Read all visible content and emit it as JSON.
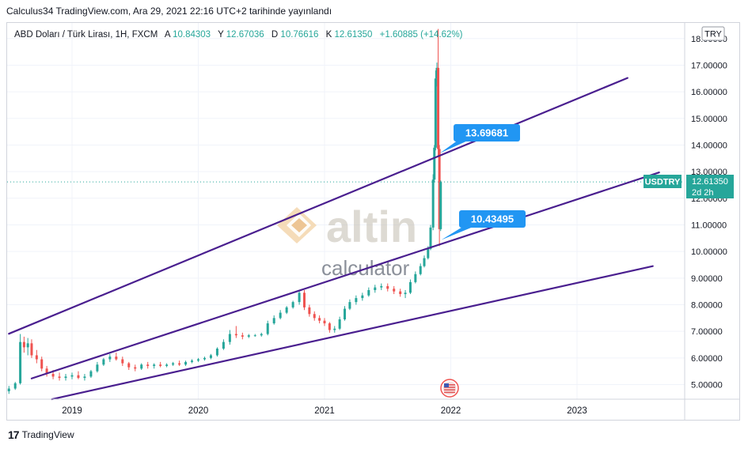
{
  "header": {
    "published_line": "Calculus34 TradingView.com, Ara 29, 2021 22:16 UTC+2 tarihinde yayınlandı"
  },
  "symbol_bar": {
    "name": "ABD Doları / Türk Lirası, 1H, FXCM",
    "open_label": "A",
    "open_value": "10.84303",
    "high_label": "Y",
    "high_value": "12.67036",
    "low_label": "D",
    "low_value": "10.76616",
    "close_label": "K",
    "close_value": "12.61350",
    "change": "+1.60885 (+14.62%)"
  },
  "currency_button": "TRY",
  "last_price": {
    "symbol": "USDTRY",
    "price": "12.61350",
    "countdown": "2d 2h"
  },
  "callouts": [
    {
      "text": "13.69681",
      "value": 13.69681
    },
    {
      "text": "10.43495",
      "value": 10.43495
    }
  ],
  "watermark": {
    "brand": "altin",
    "sub": "calculator"
  },
  "footer": {
    "brand": "TradingView"
  },
  "colors": {
    "up": "#26a69a",
    "down": "#ef5350",
    "trendline": "#4a1f8f",
    "callout": "#2196f3",
    "last_price": "#26a69a"
  },
  "chart_data": {
    "type": "candlestick",
    "y_axis": {
      "ticks": [
        "18.00000",
        "17.00000",
        "16.00000",
        "15.00000",
        "14.00000",
        "13.00000",
        "12.00000",
        "11.00000",
        "10.00000",
        "9.00000",
        "8.00000",
        "7.00000",
        "6.00000",
        "5.00000"
      ],
      "range": [
        4.6,
        18.2
      ]
    },
    "x_axis": {
      "ticks": [
        "2019",
        "2020",
        "2021",
        "2022",
        "2023"
      ],
      "range": [
        2018.5,
        2023.75
      ]
    },
    "grid": true,
    "last_price_line": 12.6135,
    "series": [
      {
        "t": 2018.5,
        "o": 4.75,
        "h": 4.95,
        "l": 4.65,
        "c": 4.85
      },
      {
        "t": 2018.55,
        "o": 4.85,
        "h": 5.1,
        "l": 4.8,
        "c": 5.05
      },
      {
        "t": 2018.59,
        "o": 5.05,
        "h": 6.9,
        "l": 5.0,
        "c": 6.6
      },
      {
        "t": 2018.62,
        "o": 6.6,
        "h": 6.8,
        "l": 6.2,
        "c": 6.4
      },
      {
        "t": 2018.65,
        "o": 6.4,
        "h": 6.75,
        "l": 6.1,
        "c": 6.55
      },
      {
        "t": 2018.68,
        "o": 6.55,
        "h": 6.7,
        "l": 6.0,
        "c": 6.1
      },
      {
        "t": 2018.72,
        "o": 6.1,
        "h": 6.3,
        "l": 5.8,
        "c": 5.95
      },
      {
        "t": 2018.76,
        "o": 5.95,
        "h": 6.05,
        "l": 5.5,
        "c": 5.6
      },
      {
        "t": 2018.8,
        "o": 5.6,
        "h": 5.7,
        "l": 5.3,
        "c": 5.4
      },
      {
        "t": 2018.85,
        "o": 5.4,
        "h": 5.55,
        "l": 5.2,
        "c": 5.3
      },
      {
        "t": 2018.9,
        "o": 5.3,
        "h": 5.45,
        "l": 5.15,
        "c": 5.25
      },
      {
        "t": 2018.95,
        "o": 5.25,
        "h": 5.4,
        "l": 5.15,
        "c": 5.3
      },
      {
        "t": 2019.0,
        "o": 5.3,
        "h": 5.45,
        "l": 5.2,
        "c": 5.35
      },
      {
        "t": 2019.05,
        "o": 5.35,
        "h": 5.5,
        "l": 5.2,
        "c": 5.25
      },
      {
        "t": 2019.1,
        "o": 5.25,
        "h": 5.4,
        "l": 5.15,
        "c": 5.3
      },
      {
        "t": 2019.15,
        "o": 5.3,
        "h": 5.55,
        "l": 5.25,
        "c": 5.5
      },
      {
        "t": 2019.2,
        "o": 5.5,
        "h": 5.85,
        "l": 5.45,
        "c": 5.75
      },
      {
        "t": 2019.25,
        "o": 5.75,
        "h": 6.0,
        "l": 5.7,
        "c": 5.95
      },
      {
        "t": 2019.3,
        "o": 5.95,
        "h": 6.15,
        "l": 5.85,
        "c": 6.05
      },
      {
        "t": 2019.35,
        "o": 6.05,
        "h": 6.2,
        "l": 5.9,
        "c": 5.95
      },
      {
        "t": 2019.4,
        "o": 5.95,
        "h": 6.05,
        "l": 5.7,
        "c": 5.8
      },
      {
        "t": 2019.45,
        "o": 5.8,
        "h": 5.85,
        "l": 5.55,
        "c": 5.65
      },
      {
        "t": 2019.5,
        "o": 5.65,
        "h": 5.75,
        "l": 5.5,
        "c": 5.6
      },
      {
        "t": 2019.55,
        "o": 5.6,
        "h": 5.8,
        "l": 5.55,
        "c": 5.75
      },
      {
        "t": 2019.6,
        "o": 5.75,
        "h": 5.85,
        "l": 5.6,
        "c": 5.7
      },
      {
        "t": 2019.65,
        "o": 5.7,
        "h": 5.8,
        "l": 5.6,
        "c": 5.75
      },
      {
        "t": 2019.7,
        "o": 5.75,
        "h": 5.85,
        "l": 5.65,
        "c": 5.7
      },
      {
        "t": 2019.75,
        "o": 5.7,
        "h": 5.8,
        "l": 5.65,
        "c": 5.75
      },
      {
        "t": 2019.8,
        "o": 5.75,
        "h": 5.85,
        "l": 5.7,
        "c": 5.8
      },
      {
        "t": 2019.85,
        "o": 5.8,
        "h": 5.9,
        "l": 5.7,
        "c": 5.75
      },
      {
        "t": 2019.9,
        "o": 5.75,
        "h": 5.9,
        "l": 5.7,
        "c": 5.85
      },
      {
        "t": 2019.95,
        "o": 5.85,
        "h": 5.95,
        "l": 5.8,
        "c": 5.9
      },
      {
        "t": 2020.0,
        "o": 5.9,
        "h": 6.0,
        "l": 5.85,
        "c": 5.95
      },
      {
        "t": 2020.05,
        "o": 5.95,
        "h": 6.05,
        "l": 5.9,
        "c": 6.0
      },
      {
        "t": 2020.1,
        "o": 6.0,
        "h": 6.15,
        "l": 5.95,
        "c": 6.1
      },
      {
        "t": 2020.15,
        "o": 6.1,
        "h": 6.4,
        "l": 6.05,
        "c": 6.35
      },
      {
        "t": 2020.2,
        "o": 6.35,
        "h": 6.7,
        "l": 6.3,
        "c": 6.6
      },
      {
        "t": 2020.25,
        "o": 6.6,
        "h": 7.05,
        "l": 6.5,
        "c": 6.9
      },
      {
        "t": 2020.3,
        "o": 6.9,
        "h": 7.2,
        "l": 6.75,
        "c": 6.85
      },
      {
        "t": 2020.35,
        "o": 6.85,
        "h": 6.95,
        "l": 6.7,
        "c": 6.8
      },
      {
        "t": 2020.4,
        "o": 6.8,
        "h": 6.9,
        "l": 6.75,
        "c": 6.85
      },
      {
        "t": 2020.45,
        "o": 6.85,
        "h": 6.9,
        "l": 6.8,
        "c": 6.85
      },
      {
        "t": 2020.5,
        "o": 6.85,
        "h": 6.95,
        "l": 6.8,
        "c": 6.9
      },
      {
        "t": 2020.55,
        "o": 6.9,
        "h": 7.4,
        "l": 6.85,
        "c": 7.3
      },
      {
        "t": 2020.6,
        "o": 7.3,
        "h": 7.6,
        "l": 7.25,
        "c": 7.5
      },
      {
        "t": 2020.65,
        "o": 7.5,
        "h": 7.8,
        "l": 7.45,
        "c": 7.7
      },
      {
        "t": 2020.7,
        "o": 7.7,
        "h": 7.95,
        "l": 7.65,
        "c": 7.9
      },
      {
        "t": 2020.75,
        "o": 7.9,
        "h": 8.15,
        "l": 7.85,
        "c": 8.1
      },
      {
        "t": 2020.8,
        "o": 8.1,
        "h": 8.55,
        "l": 8.0,
        "c": 8.45
      },
      {
        "t": 2020.84,
        "o": 8.45,
        "h": 8.55,
        "l": 7.8,
        "c": 7.9
      },
      {
        "t": 2020.88,
        "o": 7.9,
        "h": 8.0,
        "l": 7.55,
        "c": 7.65
      },
      {
        "t": 2020.92,
        "o": 7.65,
        "h": 7.75,
        "l": 7.4,
        "c": 7.5
      },
      {
        "t": 2020.96,
        "o": 7.5,
        "h": 7.6,
        "l": 7.3,
        "c": 7.4
      },
      {
        "t": 2021.0,
        "o": 7.4,
        "h": 7.5,
        "l": 7.2,
        "c": 7.3
      },
      {
        "t": 2021.04,
        "o": 7.3,
        "h": 7.35,
        "l": 6.95,
        "c": 7.05
      },
      {
        "t": 2021.08,
        "o": 7.05,
        "h": 7.2,
        "l": 6.95,
        "c": 7.1
      },
      {
        "t": 2021.12,
        "o": 7.1,
        "h": 7.55,
        "l": 7.05,
        "c": 7.45
      },
      {
        "t": 2021.16,
        "o": 7.45,
        "h": 7.95,
        "l": 7.4,
        "c": 7.85
      },
      {
        "t": 2021.2,
        "o": 7.85,
        "h": 8.2,
        "l": 7.8,
        "c": 8.1
      },
      {
        "t": 2021.25,
        "o": 8.1,
        "h": 8.35,
        "l": 8.0,
        "c": 8.25
      },
      {
        "t": 2021.3,
        "o": 8.25,
        "h": 8.45,
        "l": 8.15,
        "c": 8.35
      },
      {
        "t": 2021.35,
        "o": 8.35,
        "h": 8.65,
        "l": 8.3,
        "c": 8.55
      },
      {
        "t": 2021.4,
        "o": 8.55,
        "h": 8.75,
        "l": 8.45,
        "c": 8.65
      },
      {
        "t": 2021.45,
        "o": 8.65,
        "h": 8.8,
        "l": 8.55,
        "c": 8.7
      },
      {
        "t": 2021.5,
        "o": 8.7,
        "h": 8.8,
        "l": 8.5,
        "c": 8.6
      },
      {
        "t": 2021.55,
        "o": 8.6,
        "h": 8.7,
        "l": 8.4,
        "c": 8.5
      },
      {
        "t": 2021.6,
        "o": 8.5,
        "h": 8.6,
        "l": 8.3,
        "c": 8.4
      },
      {
        "t": 2021.64,
        "o": 8.4,
        "h": 8.55,
        "l": 8.25,
        "c": 8.45
      },
      {
        "t": 2021.68,
        "o": 8.45,
        "h": 8.95,
        "l": 8.4,
        "c": 8.85
      },
      {
        "t": 2021.72,
        "o": 8.85,
        "h": 9.25,
        "l": 8.8,
        "c": 9.15
      },
      {
        "t": 2021.76,
        "o": 9.15,
        "h": 9.55,
        "l": 9.1,
        "c": 9.45
      },
      {
        "t": 2021.79,
        "o": 9.45,
        "h": 9.85,
        "l": 9.4,
        "c": 9.75
      },
      {
        "t": 2021.82,
        "o": 9.75,
        "h": 10.2,
        "l": 9.7,
        "c": 10.1
      },
      {
        "t": 2021.84,
        "o": 10.1,
        "h": 11.0,
        "l": 10.05,
        "c": 10.9
      },
      {
        "t": 2021.86,
        "o": 10.9,
        "h": 12.9,
        "l": 10.8,
        "c": 12.7
      },
      {
        "t": 2021.87,
        "o": 12.7,
        "h": 14.0,
        "l": 12.6,
        "c": 13.9
      },
      {
        "t": 2021.88,
        "o": 13.9,
        "h": 16.8,
        "l": 13.8,
        "c": 16.5
      },
      {
        "t": 2021.89,
        "o": 16.5,
        "h": 17.1,
        "l": 16.2,
        "c": 16.9
      },
      {
        "t": 2021.9,
        "o": 16.9,
        "h": 18.36,
        "l": 13.6,
        "c": 13.85
      },
      {
        "t": 2021.91,
        "o": 13.85,
        "h": 14.0,
        "l": 10.2,
        "c": 10.84
      },
      {
        "t": 2021.92,
        "o": 10.84,
        "h": 12.67,
        "l": 10.77,
        "c": 12.61
      }
    ],
    "trendlines": [
      {
        "x1": 2018.5,
        "y1": 6.91,
        "x2": 2023.4,
        "y2": 16.52
      },
      {
        "x1": 2018.68,
        "y1": 5.23,
        "x2": 2023.65,
        "y2": 12.97
      },
      {
        "x1": 2018.84,
        "y1": 4.45,
        "x2": 2023.6,
        "y2": 9.45
      }
    ]
  }
}
